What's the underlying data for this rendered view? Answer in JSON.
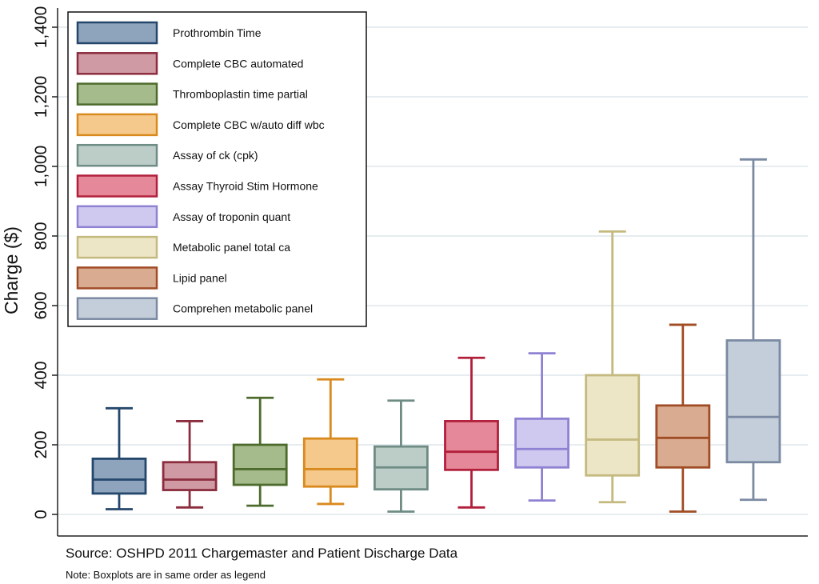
{
  "chart_data": {
    "type": "boxplot",
    "title": "",
    "xlabel": "",
    "ylabel": "Charge ($)",
    "ylim": [
      0,
      1400
    ],
    "yticks": [
      0,
      200,
      400,
      600,
      800,
      1000,
      1200,
      1400
    ],
    "ytick_labels": [
      "0",
      "200",
      "400",
      "600",
      "800",
      "1,000",
      "1,200",
      "1,400"
    ],
    "grid": true,
    "legend_position": "top-left",
    "series": [
      {
        "name": "Prothrombin Time",
        "color": "#24476b",
        "fill": "#8ea4bc",
        "whisker_low": 15,
        "q1": 60,
        "median": 100,
        "q3": 160,
        "whisker_high": 305
      },
      {
        "name": "Complete CBC automated",
        "color": "#8b2d3e",
        "fill": "#d09aa4",
        "whisker_low": 20,
        "q1": 70,
        "median": 100,
        "q3": 150,
        "whisker_high": 268
      },
      {
        "name": "Thromboplastin time partial",
        "color": "#4d6b2c",
        "fill": "#a6bb8c",
        "whisker_low": 25,
        "q1": 85,
        "median": 130,
        "q3": 200,
        "whisker_high": 335
      },
      {
        "name": "Complete CBC w/auto diff wbc",
        "color": "#d98a1e",
        "fill": "#f5c98c",
        "whisker_low": 30,
        "q1": 80,
        "median": 130,
        "q3": 218,
        "whisker_high": 388
      },
      {
        "name": "Assay of ck (cpk)",
        "color": "#6f8c84",
        "fill": "#bccdc7",
        "whisker_low": 8,
        "q1": 72,
        "median": 135,
        "q3": 195,
        "whisker_high": 327
      },
      {
        "name": "Assay Thyroid Stim Hormone",
        "color": "#b21f3b",
        "fill": "#e5899a",
        "whisker_low": 20,
        "q1": 128,
        "median": 180,
        "q3": 268,
        "whisker_high": 450
      },
      {
        "name": "Assay of troponin quant",
        "color": "#8f82d2",
        "fill": "#cfc8ef",
        "whisker_low": 40,
        "q1": 135,
        "median": 188,
        "q3": 275,
        "whisker_high": 463
      },
      {
        "name": "Metabolic panel total ca",
        "color": "#c4b97e",
        "fill": "#ece6c7",
        "whisker_low": 35,
        "q1": 112,
        "median": 215,
        "q3": 400,
        "whisker_high": 813
      },
      {
        "name": "Lipid panel",
        "color": "#a04c25",
        "fill": "#d9ac91",
        "whisker_low": 8,
        "q1": 135,
        "median": 220,
        "q3": 313,
        "whisker_high": 545
      },
      {
        "name": "Comprehen metabolic panel",
        "color": "#7b8aa2",
        "fill": "#c4cedb",
        "whisker_low": 42,
        "q1": 150,
        "median": 280,
        "q3": 500,
        "whisker_high": 1020
      }
    ]
  },
  "footer": {
    "source": "Source: OSHPD 2011 Chargemaster and Patient Discharge Data",
    "note": "Note: Boxplots are in same order as legend"
  }
}
